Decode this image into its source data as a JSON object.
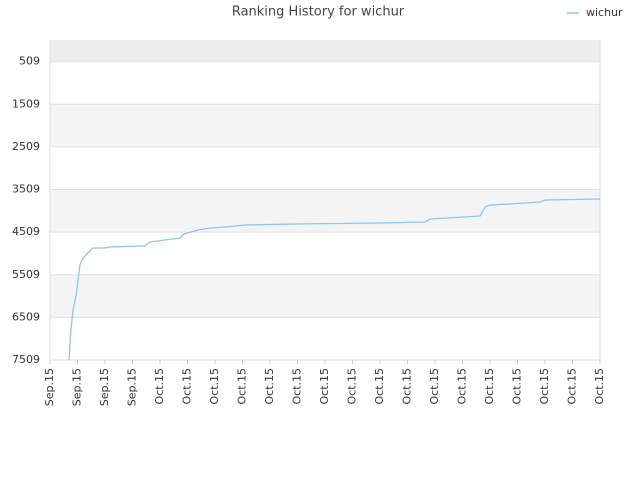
{
  "chart_data": {
    "type": "line",
    "title": "Ranking History for wichur",
    "x": [
      0.69,
      0.76,
      0.84,
      0.95,
      1.02,
      1.09,
      1.2,
      1.38,
      1.56,
      2,
      2.18,
      3.45,
      3.64,
      4.18,
      4.73,
      4.87,
      5.38,
      5.82,
      6.36,
      7.09,
      8.91,
      12,
      13.64,
      13.82,
      15.64,
      15.82,
      16,
      16.73,
      17.82,
      18,
      20
    ],
    "series": [
      {
        "name": "wichur",
        "color": "#90c4ee",
        "values": [
          7509,
          6804,
          6335,
          5983,
          5631,
          5279,
          5115,
          4998,
          4880,
          4880,
          4857,
          4833,
          4740,
          4693,
          4646,
          4552,
          4458,
          4411,
          4388,
          4341,
          4317,
          4294,
          4270,
          4200,
          4130,
          3918,
          3871,
          3848,
          3801,
          3754,
          3731
        ]
      }
    ],
    "xlim": [
      0,
      20
    ],
    "xticks": [
      {
        "value": 0,
        "label": "Sep.15"
      },
      {
        "value": 1,
        "label": "Sep.15"
      },
      {
        "value": 2,
        "label": "Sep.15"
      },
      {
        "value": 3,
        "label": "Sep.15"
      },
      {
        "value": 4,
        "label": "Oct.15"
      },
      {
        "value": 5,
        "label": "Oct.15"
      },
      {
        "value": 6,
        "label": "Oct.15"
      },
      {
        "value": 7,
        "label": "Oct.15"
      },
      {
        "value": 8,
        "label": "Oct.15"
      },
      {
        "value": 9,
        "label": "Oct.15"
      },
      {
        "value": 10,
        "label": "Oct.15"
      },
      {
        "value": 11,
        "label": "Oct.15"
      },
      {
        "value": 12,
        "label": "Oct.15"
      },
      {
        "value": 13,
        "label": "Oct.15"
      },
      {
        "value": 14,
        "label": "Oct.15"
      },
      {
        "value": 15,
        "label": "Oct.15"
      },
      {
        "value": 16,
        "label": "Oct.15"
      },
      {
        "value": 17,
        "label": "Oct.15"
      },
      {
        "value": 18,
        "label": "Oct.15"
      },
      {
        "value": 19,
        "label": "Oct.15"
      },
      {
        "value": 20,
        "label": "Oct.15"
      }
    ],
    "ylim": [
      7509,
      0
    ],
    "yticks": [
      509,
      1509,
      2509,
      3509,
      4509,
      5509,
      6509,
      7509
    ],
    "grid": true,
    "legend": "top-right"
  }
}
